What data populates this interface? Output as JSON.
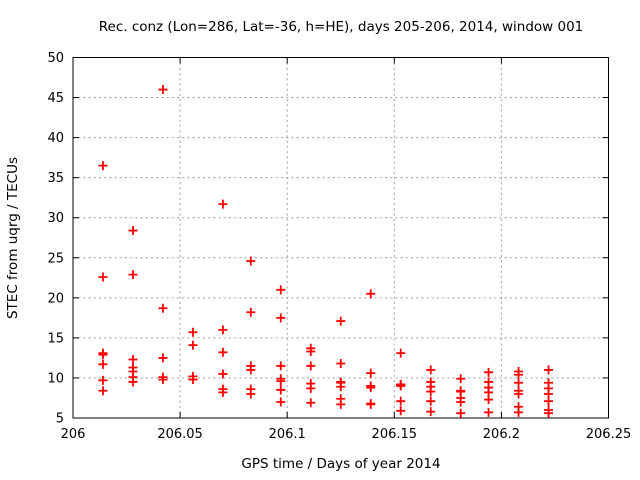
{
  "window_title": "Rec. conz (Lon=286, Lat=-36, h=HE), days 205-206, 2014, window 001",
  "colors": {
    "marker": "#ff0000",
    "grid": "#9e9e9e",
    "axis": "#000000",
    "background": "#ffffff"
  },
  "chart_data": {
    "type": "scatter",
    "title": "Rec. conz (Lon=286, Lat=-36, h=HE), days 205-206, 2014, window 001",
    "xlabel": "GPS time / Days of year 2014",
    "ylabel": "STEC from uqrg / TECUs",
    "xlim": [
      206,
      206.25
    ],
    "ylim": [
      5,
      50
    ],
    "grid": true,
    "legend": "none",
    "marker": {
      "shape": "plus",
      "color": "#ff0000",
      "size": 9
    },
    "xticks": {
      "values": [
        206,
        206.05,
        206.1,
        206.15,
        206.2,
        206.25
      ],
      "labels": [
        "206",
        "206.05",
        "206.1",
        "206.15",
        "206.2",
        "206.25"
      ]
    },
    "yticks": {
      "values": [
        5,
        10,
        15,
        20,
        25,
        30,
        35,
        40,
        45,
        50
      ],
      "labels": [
        "5",
        "10",
        "15",
        "20",
        "25",
        "30",
        "35",
        "40",
        "45",
        "50"
      ]
    },
    "series": [
      {
        "name": "STEC from uqrg",
        "points": [
          [
            206.014,
            36.5
          ],
          [
            206.014,
            22.6
          ],
          [
            206.014,
            13.1
          ],
          [
            206.014,
            12.9
          ],
          [
            206.014,
            11.7
          ],
          [
            206.014,
            9.7
          ],
          [
            206.014,
            8.4
          ],
          [
            206.028,
            28.4
          ],
          [
            206.028,
            22.9
          ],
          [
            206.028,
            12.3
          ],
          [
            206.028,
            11.3
          ],
          [
            206.028,
            10.8
          ],
          [
            206.028,
            10.1
          ],
          [
            206.028,
            9.5
          ],
          [
            206.042,
            46.0
          ],
          [
            206.042,
            18.7
          ],
          [
            206.042,
            12.5
          ],
          [
            206.042,
            10.1
          ],
          [
            206.042,
            9.8
          ],
          [
            206.056,
            15.7
          ],
          [
            206.056,
            14.1
          ],
          [
            206.056,
            10.2
          ],
          [
            206.056,
            9.8
          ],
          [
            206.07,
            31.7
          ],
          [
            206.07,
            16.0
          ],
          [
            206.07,
            13.2
          ],
          [
            206.07,
            10.5
          ],
          [
            206.07,
            8.6
          ],
          [
            206.07,
            8.2
          ],
          [
            206.083,
            24.6
          ],
          [
            206.083,
            18.2
          ],
          [
            206.083,
            11.5
          ],
          [
            206.083,
            11.0
          ],
          [
            206.083,
            8.6
          ],
          [
            206.083,
            8.0
          ],
          [
            206.097,
            21.0
          ],
          [
            206.097,
            17.5
          ],
          [
            206.097,
            11.5
          ],
          [
            206.097,
            9.9
          ],
          [
            206.097,
            9.6
          ],
          [
            206.097,
            8.5
          ],
          [
            206.097,
            7.0
          ],
          [
            206.111,
            13.7
          ],
          [
            206.111,
            13.3
          ],
          [
            206.111,
            11.5
          ],
          [
            206.111,
            9.3
          ],
          [
            206.111,
            8.7
          ],
          [
            206.111,
            6.9
          ],
          [
            206.125,
            17.1
          ],
          [
            206.125,
            11.8
          ],
          [
            206.125,
            9.5
          ],
          [
            206.125,
            9.4
          ],
          [
            206.125,
            8.9
          ],
          [
            206.125,
            7.4
          ],
          [
            206.125,
            6.7
          ],
          [
            206.139,
            20.5
          ],
          [
            206.139,
            10.6
          ],
          [
            206.139,
            9.0
          ],
          [
            206.139,
            8.8
          ],
          [
            206.139,
            6.8
          ],
          [
            206.139,
            6.7
          ],
          [
            206.153,
            13.1
          ],
          [
            206.153,
            9.2
          ],
          [
            206.153,
            9.1
          ],
          [
            206.153,
            9.0
          ],
          [
            206.153,
            7.1
          ],
          [
            206.153,
            5.9
          ],
          [
            206.167,
            11.0
          ],
          [
            206.167,
            9.5
          ],
          [
            206.167,
            8.9
          ],
          [
            206.167,
            8.3
          ],
          [
            206.167,
            7.1
          ],
          [
            206.167,
            5.8
          ],
          [
            206.181,
            9.9
          ],
          [
            206.181,
            8.4
          ],
          [
            206.181,
            8.3
          ],
          [
            206.181,
            7.5
          ],
          [
            206.181,
            7.0
          ],
          [
            206.181,
            5.6
          ],
          [
            206.194,
            10.7
          ],
          [
            206.194,
            9.5
          ],
          [
            206.194,
            8.8
          ],
          [
            206.194,
            8.2
          ],
          [
            206.194,
            7.3
          ],
          [
            206.194,
            5.7
          ],
          [
            206.208,
            10.8
          ],
          [
            206.208,
            10.4
          ],
          [
            206.208,
            9.4
          ],
          [
            206.208,
            8.4
          ],
          [
            206.208,
            8.0
          ],
          [
            206.208,
            6.4
          ],
          [
            206.208,
            5.7
          ],
          [
            206.222,
            11.0
          ],
          [
            206.222,
            9.4
          ],
          [
            206.222,
            8.7
          ],
          [
            206.222,
            8.0
          ],
          [
            206.222,
            7.1
          ],
          [
            206.222,
            6.0
          ],
          [
            206.222,
            5.6
          ]
        ]
      }
    ]
  }
}
